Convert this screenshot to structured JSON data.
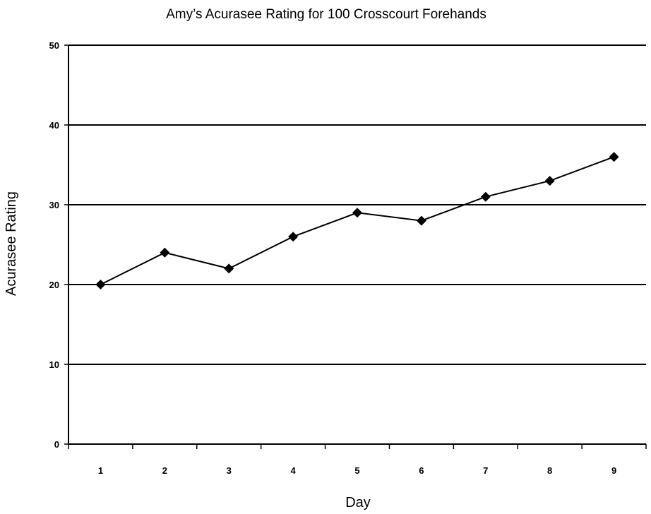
{
  "chart_data": {
    "type": "line",
    "title": "Amy’s Acurasee Rating for 100 Crosscourt Forehands",
    "xlabel": "Day",
    "ylabel": "Acurasee Rating",
    "categories": [
      "1",
      "2",
      "3",
      "4",
      "5",
      "6",
      "7",
      "8",
      "9"
    ],
    "series": [
      {
        "values": [
          20,
          24,
          22,
          26,
          29,
          28,
          31,
          33,
          36
        ]
      }
    ],
    "ylim": [
      0,
      50
    ],
    "yticks": [
      "0",
      "10",
      "20",
      "30",
      "40",
      "50"
    ],
    "grid": "horizontal",
    "legend": "none",
    "marker": "diamond",
    "line_color": "#000000"
  }
}
